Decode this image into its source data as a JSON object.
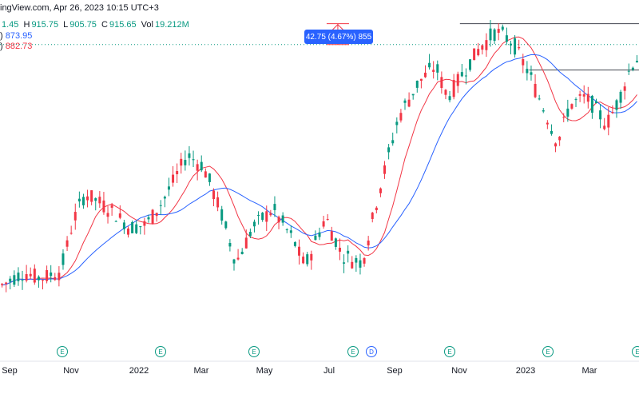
{
  "header": {
    "source_line": "ingView.com, Apr 26, 2023 10:15 UTC+3",
    "ohlc": {
      "o_label": "",
      "o_value": "1.45",
      "h_label": "H",
      "h_value": "915.75",
      "l_label": "L",
      "l_value": "905.75",
      "c_label": "C",
      "c_value": "915.65",
      "vol_label": "Vol",
      "vol_value": "19.212M"
    },
    "ma1": {
      "prefix": ")",
      "value": "873.95"
    },
    "ma2": {
      "prefix": ")",
      "value": "882.73"
    }
  },
  "measure": {
    "label": "42.75 (4.67%) 855"
  },
  "colors": {
    "up": "#089981",
    "down": "#f23645",
    "ma_blue": "#2962ff",
    "ma_red": "#f23645",
    "measure": "#2962ff",
    "event": "#089981",
    "dividend": "#2962ff"
  },
  "chart_data": {
    "type": "candlestick",
    "x_tick_labels": [
      "Sep",
      "Nov",
      "2022",
      "Mar",
      "May",
      "Jul",
      "Sep",
      "Nov",
      "2023",
      "Mar"
    ],
    "events": [
      {
        "label": "E",
        "type": "earnings"
      },
      {
        "label": "E",
        "type": "earnings"
      },
      {
        "label": "E",
        "type": "earnings"
      },
      {
        "label": "E",
        "type": "earnings"
      },
      {
        "label": "D",
        "type": "dividend"
      },
      {
        "label": "E",
        "type": "earnings"
      },
      {
        "label": "E",
        "type": "earnings"
      },
      {
        "label": "E",
        "type": "earnings"
      }
    ],
    "price_path": [
      {
        "t": 0,
        "p": 320
      },
      {
        "t": 6,
        "p": 355
      },
      {
        "t": 10,
        "p": 340
      },
      {
        "t": 15,
        "p": 360
      },
      {
        "t": 18,
        "p": 490
      },
      {
        "t": 21,
        "p": 560
      },
      {
        "t": 27,
        "p": 520
      },
      {
        "t": 32,
        "p": 470
      },
      {
        "t": 36,
        "p": 480
      },
      {
        "t": 40,
        "p": 540
      },
      {
        "t": 46,
        "p": 660
      },
      {
        "t": 50,
        "p": 630
      },
      {
        "t": 54,
        "p": 520
      },
      {
        "t": 58,
        "p": 380
      },
      {
        "t": 62,
        "p": 470
      },
      {
        "t": 67,
        "p": 520
      },
      {
        "t": 72,
        "p": 440
      },
      {
        "t": 75,
        "p": 370
      },
      {
        "t": 80,
        "p": 500
      },
      {
        "t": 84,
        "p": 400
      },
      {
        "t": 89,
        "p": 380
      },
      {
        "t": 93,
        "p": 560
      },
      {
        "t": 98,
        "p": 760
      },
      {
        "t": 103,
        "p": 850
      },
      {
        "t": 107,
        "p": 890
      },
      {
        "t": 110,
        "p": 810
      },
      {
        "t": 113,
        "p": 860
      },
      {
        "t": 118,
        "p": 940
      },
      {
        "t": 122,
        "p": 980
      },
      {
        "t": 126,
        "p": 950
      },
      {
        "t": 130,
        "p": 870
      },
      {
        "t": 134,
        "p": 770
      },
      {
        "t": 137,
        "p": 690
      },
      {
        "t": 140,
        "p": 790
      },
      {
        "t": 144,
        "p": 810
      },
      {
        "t": 149,
        "p": 740
      },
      {
        "t": 152,
        "p": 800
      },
      {
        "t": 155,
        "p": 890
      },
      {
        "t": 157,
        "p": 915
      }
    ],
    "price_range": [
      150,
      1020
    ],
    "horizontal_lines": [
      {
        "price": 1000,
        "t_start": 113,
        "t_end": 157
      },
      {
        "price": 880,
        "t_start": 130,
        "t_end": 157
      }
    ],
    "dotted_line_price": 946,
    "measure_tool": {
      "t": 83,
      "p_from": 946,
      "p_to": 1000
    }
  }
}
